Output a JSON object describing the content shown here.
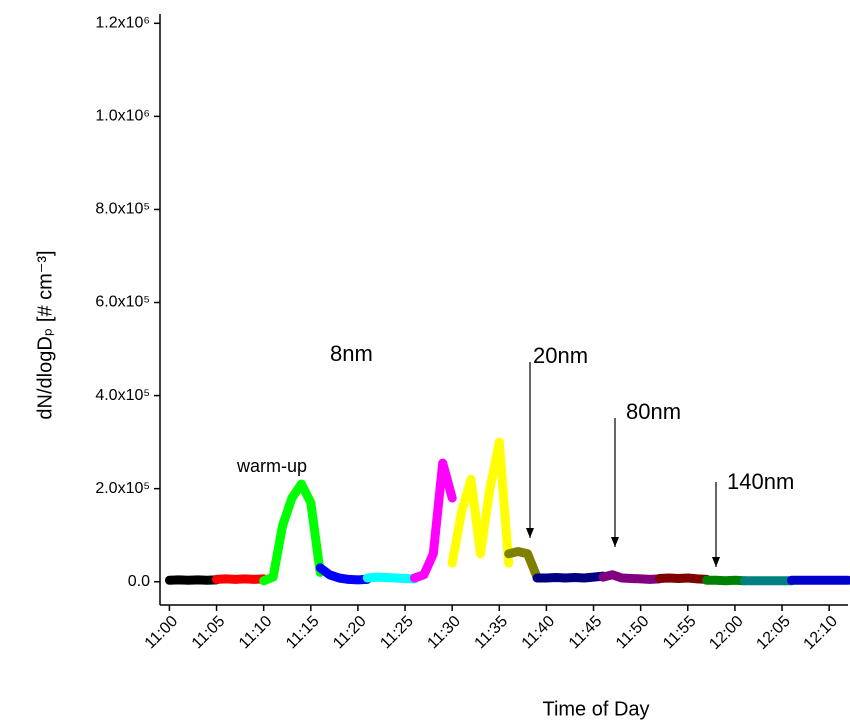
{
  "chart_data": {
    "type": "line",
    "x_label": "Time of Day",
    "y_label": "dN/dlogDₚ  [# cm⁻³]",
    "xlim": [
      "10:59",
      "12:12"
    ],
    "ylim": [
      -50000,
      1220000
    ],
    "xticks": [
      "11:00",
      "11:05",
      "11:10",
      "11:15",
      "11:20",
      "11:25",
      "11:30",
      "11:35",
      "11:40",
      "11:45",
      "11:50",
      "11:55",
      "12:00",
      "12:05",
      "12:10"
    ],
    "yticks": [
      {
        "value": 0,
        "label": "0.0"
      },
      {
        "value": 200000,
        "label": "2.0x10⁵"
      },
      {
        "value": 400000,
        "label": "4.0x10⁵"
      },
      {
        "value": 600000,
        "label": "6.0x10⁵"
      },
      {
        "value": 800000,
        "label": "8.0x10⁵"
      },
      {
        "value": 1000000,
        "label": "1.0x10⁶"
      },
      {
        "value": 1200000,
        "label": "1.2x10⁶"
      }
    ],
    "series": [
      {
        "color": "#000000",
        "x": [
          "11:00",
          "11:01",
          "11:02",
          "11:03",
          "11:04",
          "11:05"
        ],
        "values": [
          3000,
          4000,
          3000,
          4000,
          3000,
          4000
        ]
      },
      {
        "color": "#ff0000",
        "x": [
          "11:05",
          "11:06",
          "11:07",
          "11:08",
          "11:09",
          "11:10"
        ],
        "values": [
          5000,
          6000,
          5000,
          6000,
          5000,
          6000
        ]
      },
      {
        "color": "#00ff00",
        "x": [
          "11:10",
          "11:11",
          "11:12",
          "11:13",
          "11:14",
          "11:15",
          "11:16"
        ],
        "values": [
          2000,
          10000,
          120000,
          180000,
          210000,
          170000,
          20000
        ]
      },
      {
        "color": "#0000ff",
        "x": [
          "11:16",
          "11:17",
          "11:18",
          "11:19",
          "11:20",
          "11:21"
        ],
        "values": [
          30000,
          15000,
          8000,
          5000,
          4000,
          5000
        ]
      },
      {
        "color": "#00ffff",
        "x": [
          "11:21",
          "11:22",
          "11:23",
          "11:24",
          "11:25",
          "11:26"
        ],
        "values": [
          8000,
          10000,
          9000,
          8000,
          7000,
          6000
        ]
      },
      {
        "color": "#ff00ff",
        "x": [
          "11:26",
          "11:27",
          "11:28",
          "11:29",
          "11:30"
        ],
        "values": [
          8000,
          15000,
          60000,
          255000,
          180000
        ]
      },
      {
        "color": "#ffff00",
        "x": [
          "11:30",
          "11:31",
          "11:32",
          "11:33",
          "11:34",
          "11:35",
          "11:36"
        ],
        "values": [
          40000,
          150000,
          220000,
          60000,
          200000,
          300000,
          40000
        ]
      },
      {
        "color": "#808000",
        "x": [
          "11:36",
          "11:37",
          "11:38",
          "11:39"
        ],
        "values": [
          60000,
          65000,
          60000,
          10000
        ]
      },
      {
        "color": "#000080",
        "x": [
          "11:39",
          "11:40",
          "11:41",
          "11:42",
          "11:43",
          "11:44",
          "11:45",
          "11:46"
        ],
        "values": [
          8000,
          8000,
          9000,
          8000,
          9000,
          8000,
          10000,
          12000
        ]
      },
      {
        "color": "#800080",
        "x": [
          "11:46",
          "11:47",
          "11:48",
          "11:49",
          "11:50",
          "11:51",
          "11:52"
        ],
        "values": [
          10000,
          15000,
          8000,
          7000,
          6000,
          5000,
          6000
        ]
      },
      {
        "color": "#800000",
        "x": [
          "11:52",
          "11:53",
          "11:54",
          "11:55",
          "11:56",
          "11:57"
        ],
        "values": [
          7000,
          8000,
          7000,
          8000,
          6000,
          5000
        ]
      },
      {
        "color": "#008000",
        "x": [
          "11:57",
          "11:58",
          "11:59",
          "12:00",
          "12:01"
        ],
        "values": [
          3000,
          3000,
          2000,
          3000,
          2000
        ]
      },
      {
        "color": "#008080",
        "x": [
          "12:01",
          "12:02",
          "12:03",
          "12:04",
          "12:05",
          "12:06"
        ],
        "values": [
          2000,
          2000,
          2000,
          2000,
          2000,
          2000
        ]
      },
      {
        "color": "#0000cd",
        "x": [
          "12:06",
          "12:07",
          "12:08",
          "12:09",
          "12:10",
          "12:11",
          "12:12"
        ],
        "values": [
          3000,
          3000,
          3000,
          3000,
          3000,
          3000,
          3000
        ]
      }
    ],
    "annotations": [
      "warm-up",
      "8nm",
      "20nm",
      "80nm",
      "140nm"
    ]
  }
}
